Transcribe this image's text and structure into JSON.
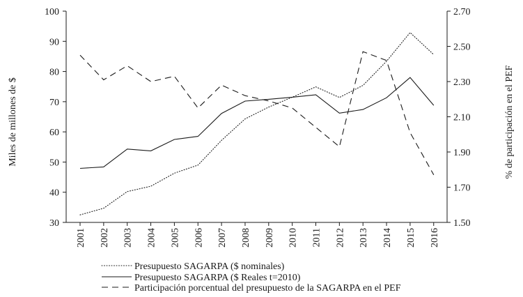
{
  "chart_data": {
    "type": "line",
    "title": "",
    "xlabel": "",
    "ylabel_left": "Miles de millones de $",
    "ylabel_right": "% de participación en el PEF",
    "categories": [
      "2001",
      "2002",
      "2003",
      "2004",
      "2005",
      "2006",
      "2007",
      "2008",
      "2009",
      "2010",
      "2011",
      "2012",
      "2013",
      "2014",
      "2015",
      "2016"
    ],
    "ylim_left": [
      30,
      100
    ],
    "yticks_left": [
      30,
      40,
      50,
      60,
      70,
      80,
      90,
      100
    ],
    "ytick_labels_left": [
      "30",
      "40",
      "50",
      "60",
      "70",
      "80",
      "90",
      "100"
    ],
    "ylim_right": [
      1.5,
      2.7
    ],
    "yticks_right": [
      1.5,
      1.7,
      1.9,
      2.1,
      2.3,
      2.5,
      2.7
    ],
    "ytick_labels_right": [
      "1.50",
      "1.70",
      "1.90",
      "2.10",
      "2.30",
      "2.50",
      "2.70"
    ],
    "grid": false,
    "legend_position": "bottom-left",
    "series": [
      {
        "name": "Presupuesto SAGARPA ($ nominales)",
        "axis": "left",
        "style": "dotted",
        "values": [
          32.5,
          34.7,
          40.2,
          42.0,
          46.3,
          49.0,
          57.2,
          64.3,
          68.2,
          71.5,
          74.9,
          71.4,
          75.4,
          83.4,
          92.9,
          85.6
        ]
      },
      {
        "name": "Presupuesto SAGARPA ($ Reales t=2010)",
        "axis": "left",
        "style": "solid",
        "values": [
          47.9,
          48.4,
          54.3,
          53.7,
          57.5,
          58.5,
          66.1,
          70.2,
          70.8,
          71.5,
          72.3,
          66.2,
          67.4,
          71.3,
          78.0,
          68.8
        ]
      },
      {
        "name": "Participación porcentual del presupuesto de la SAGARPA en el PEF",
        "axis": "right",
        "style": "dashed",
        "values": [
          2.45,
          2.31,
          2.39,
          2.3,
          2.33,
          2.15,
          2.28,
          2.22,
          2.19,
          2.15,
          2.04,
          1.93,
          2.47,
          2.42,
          2.01,
          1.77
        ]
      }
    ]
  }
}
